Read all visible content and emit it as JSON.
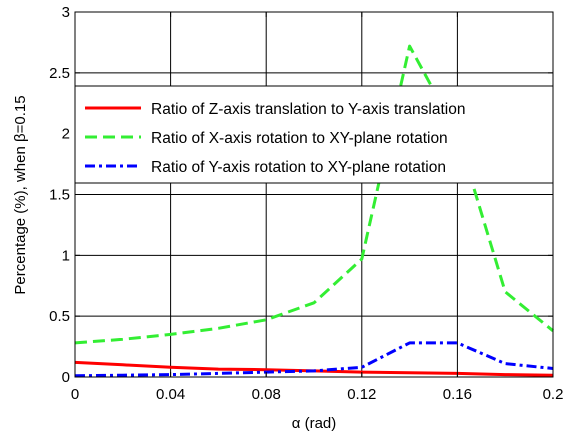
{
  "chart_data": {
    "type": "line",
    "xlabel": "α (rad)",
    "ylabel": "Percentage (%), when β=0.15",
    "xlim": [
      0,
      0.2
    ],
    "ylim": [
      0,
      3
    ],
    "xticks": [
      0,
      0.04,
      0.08,
      0.12,
      0.16,
      0.2
    ],
    "xtick_labels": [
      "0",
      "0.04",
      "0.08",
      "0.12",
      "0.16",
      "0.2"
    ],
    "yticks": [
      0,
      0.5,
      1,
      1.5,
      2,
      2.5,
      3
    ],
    "ytick_labels": [
      "0",
      "0.5",
      "1",
      "1.5",
      "2",
      "2.5",
      "3"
    ],
    "grid": true,
    "legend_position": "top",
    "x": [
      0,
      0.02,
      0.04,
      0.06,
      0.08,
      0.1,
      0.12,
      0.14,
      0.16,
      0.18,
      0.2
    ],
    "series": [
      {
        "name": "Ratio of Z-axis translation to Y-axis translation",
        "color": "#ff0000",
        "style": "solid",
        "values": [
          0.12,
          0.1,
          0.08,
          0.065,
          0.06,
          0.05,
          0.04,
          0.035,
          0.03,
          0.02,
          0.015
        ]
      },
      {
        "name": "Ratio of X-axis rotation to XY-plane rotation",
        "color": "#33ee33",
        "style": "dashed",
        "values": [
          0.28,
          0.31,
          0.35,
          0.4,
          0.47,
          0.61,
          0.97,
          2.72,
          2.0,
          0.7,
          0.38
        ]
      },
      {
        "name": "Ratio of Y-axis rotation to XY-plane rotation",
        "color": "#0000ff",
        "style": "dashdot",
        "values": [
          0.01,
          0.015,
          0.02,
          0.03,
          0.04,
          0.05,
          0.08,
          0.28,
          0.28,
          0.11,
          0.07
        ]
      }
    ]
  }
}
